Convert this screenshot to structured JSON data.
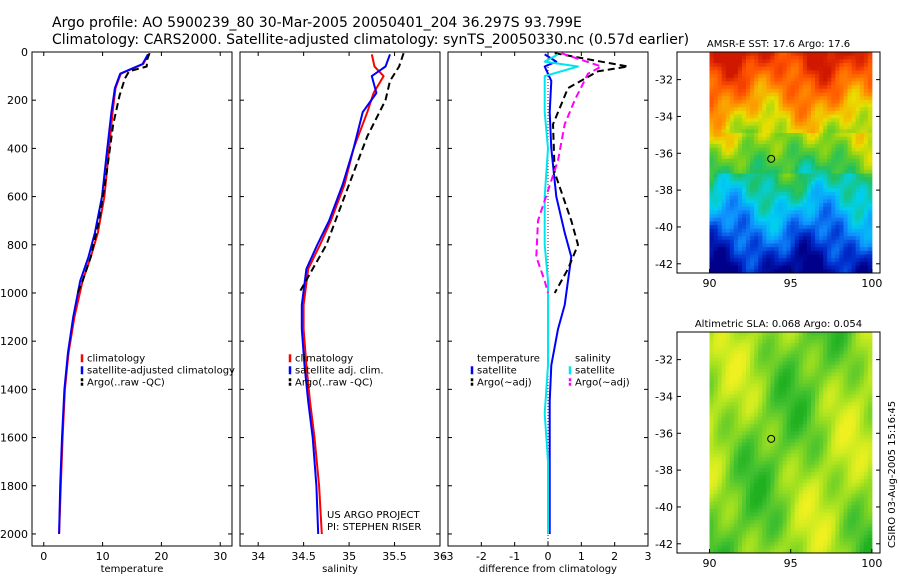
{
  "header": {
    "line1": "Argo profile: AO 5900239_80 30-Mar-2005 20050401_204 36.297S 93.799E",
    "line2": "Climatology: CARS2000. Satellite-adjusted climatology: synTS_20050330.nc (0.57d earlier)"
  },
  "credit": {
    "project": "US ARGO PROJECT",
    "pi": "PI: STEPHEN RISER",
    "stamp": "CSIRO 03-Aug-2005 15:16:45"
  },
  "colors": {
    "climatology": "#ff0000",
    "satellite": "#0000ff",
    "argo": "#000000",
    "sal_satellite": "#00e5ee",
    "sal_argo": "#ff00ff"
  },
  "chart_data": [
    {
      "type": "line",
      "xlabel": "temperature",
      "ylabel": "",
      "xlim": [
        -2,
        32
      ],
      "ylim": [
        2050,
        0
      ],
      "y_reversed": true,
      "xticks": [
        0,
        10,
        20,
        30
      ],
      "yticks": [
        0,
        200,
        400,
        600,
        800,
        1000,
        1200,
        1400,
        1600,
        1800,
        2000
      ],
      "legend": [
        "climatology",
        "satellite-adjusted climatology",
        "Argo(..raw -QC)"
      ],
      "legend_position": "lower-right",
      "series": [
        {
          "name": "climatology",
          "color": "#ff0000",
          "style": "solid",
          "x": [
            17.8,
            16.9,
            13.1,
            12.2,
            11.7,
            11.1,
            10.3,
            9.2,
            8.0,
            6.6,
            5.2,
            4.2,
            3.6,
            3.2,
            2.9,
            2.6
          ],
          "y": [
            10,
            50,
            90,
            150,
            250,
            400,
            600,
            750,
            850,
            950,
            1100,
            1250,
            1400,
            1600,
            1800,
            2000
          ]
        },
        {
          "name": "satellite-adjusted climatology",
          "color": "#0000ff",
          "style": "solid",
          "x": [
            17.7,
            16.8,
            13.0,
            12.1,
            11.5,
            10.8,
            9.9,
            8.7,
            7.6,
            6.2,
            5.0,
            4.1,
            3.5,
            3.1,
            2.8,
            2.6
          ],
          "y": [
            10,
            50,
            90,
            150,
            250,
            400,
            600,
            750,
            850,
            950,
            1100,
            1250,
            1400,
            1600,
            1800,
            2000
          ]
        },
        {
          "name": "Argo(..raw -QC)",
          "color": "#000000",
          "style": "dashed",
          "x": [
            18.0,
            17.6,
            17.5,
            14.5,
            13.8,
            12.9,
            11.8,
            10.7,
            9.4,
            8.0,
            6.6,
            5.6
          ],
          "y": [
            5,
            30,
            60,
            80,
            110,
            180,
            300,
            500,
            700,
            850,
            950,
            1010
          ]
        }
      ]
    },
    {
      "type": "line",
      "xlabel": "salinity",
      "ylabel": "",
      "xlim": [
        33.8,
        36.0
      ],
      "ylim": [
        2050,
        0
      ],
      "y_reversed": true,
      "xticks": [
        34,
        34.5,
        35,
        35.5,
        36
      ],
      "yticks": [
        0,
        200,
        400,
        600,
        800,
        1000,
        1200,
        1400,
        1600,
        1800,
        2000
      ],
      "legend": [
        "climatology",
        "satellite adj. clim.",
        "Argo(..raw -QC)"
      ],
      "legend_position": "lower-right",
      "series": [
        {
          "name": "climatology",
          "color": "#ff0000",
          "style": "solid",
          "x": [
            35.25,
            35.28,
            35.38,
            35.27,
            35.2,
            35.05,
            34.95,
            34.8,
            34.68,
            34.55,
            34.5,
            34.5,
            34.53,
            34.57,
            34.62,
            34.67,
            34.7
          ],
          "y": [
            10,
            60,
            100,
            170,
            250,
            400,
            550,
            700,
            800,
            900,
            1050,
            1150,
            1300,
            1450,
            1600,
            1800,
            2000
          ]
        },
        {
          "name": "satellite adj. clim.",
          "color": "#0000ff",
          "style": "solid",
          "x": [
            35.45,
            35.4,
            35.25,
            35.3,
            35.15,
            35.05,
            34.93,
            34.78,
            34.65,
            34.53,
            34.48,
            34.48,
            34.51,
            34.55,
            34.6,
            34.64,
            34.66
          ],
          "y": [
            10,
            60,
            100,
            170,
            250,
            400,
            550,
            700,
            800,
            900,
            1050,
            1150,
            1300,
            1450,
            1600,
            1800,
            2000
          ]
        },
        {
          "name": "Argo(..raw -QC)",
          "color": "#000000",
          "style": "dashed",
          "x": [
            35.6,
            35.55,
            35.45,
            35.4,
            35.2,
            35.05,
            34.9,
            34.75,
            34.6,
            34.45
          ],
          "y": [
            5,
            60,
            120,
            200,
            350,
            500,
            650,
            800,
            900,
            1000
          ]
        }
      ]
    },
    {
      "type": "line",
      "xlabel": "difference from climatology",
      "ylabel": "",
      "xlim": [
        -3,
        3
      ],
      "ylim": [
        2050,
        0
      ],
      "y_reversed": true,
      "xticks": [
        -3,
        -2,
        -1,
        0,
        1,
        2,
        3
      ],
      "yticks": [
        0,
        200,
        400,
        600,
        800,
        1000,
        1200,
        1400,
        1600,
        1800,
        2000
      ],
      "legend_groups": [
        {
          "heading": "temperature",
          "items": [
            "satellite",
            "Argo(~adj)"
          ]
        },
        {
          "heading": "salinity",
          "items": [
            "satellite",
            "Argo(~adj)"
          ]
        }
      ],
      "legend": [
        "temperature",
        "satellite",
        "Argo(~adj)",
        "salinity",
        "satellite",
        "Argo(~adj)"
      ],
      "legend_position": "lower-center",
      "series": [
        {
          "name": "temperature satellite",
          "color": "#0000ff",
          "style": "solid",
          "x": [
            -0.1,
            0.25,
            -0.1,
            0.1,
            0.05,
            0.1,
            0.25,
            0.5,
            0.7,
            0.6,
            0.5,
            0.3,
            0.1,
            0.05,
            0.05,
            0.05,
            0.05
          ],
          "y": [
            10,
            40,
            60,
            120,
            250,
            400,
            600,
            750,
            850,
            950,
            1050,
            1150,
            1300,
            1450,
            1600,
            1800,
            2000
          ]
        },
        {
          "name": "temperature Argo(~adj)",
          "color": "#000000",
          "style": "dashed",
          "x": [
            0.2,
            2.4,
            1.5,
            0.6,
            0.15,
            0.2,
            0.7,
            0.9,
            0.6,
            0.2
          ],
          "y": [
            5,
            60,
            80,
            150,
            300,
            500,
            700,
            800,
            900,
            1000
          ]
        },
        {
          "name": "salinity satellite",
          "color": "#00e5ee",
          "style": "solid",
          "x": [
            0.3,
            -0.1,
            0.9,
            -0.1,
            -0.1,
            0.0,
            -0.1,
            -0.1,
            0.0,
            0.0,
            0.0,
            -0.1,
            0.0,
            0.0,
            0.0
          ],
          "y": [
            10,
            40,
            60,
            100,
            250,
            400,
            600,
            800,
            950,
            1100,
            1300,
            1500,
            1700,
            1900,
            2000
          ]
        },
        {
          "name": "salinity Argo(~adj)",
          "color": "#ff00ff",
          "style": "dashed",
          "x": [
            0.4,
            1.6,
            1.2,
            0.8,
            0.5,
            0.3,
            -0.3,
            -0.35,
            -0.1,
            0.0
          ],
          "y": [
            5,
            60,
            90,
            200,
            300,
            450,
            700,
            850,
            950,
            1000
          ]
        }
      ]
    },
    {
      "type": "heatmap",
      "title": "AMSR-E SST: 17.6 Argo: 17.6",
      "xlim": [
        88,
        100.5
      ],
      "ylim": [
        -42.5,
        -30.5
      ],
      "xticks": [
        90,
        95,
        100
      ],
      "yticks": [
        -32,
        -34,
        -36,
        -38,
        -40,
        -42
      ],
      "data_region": {
        "lon": [
          90,
          100
        ],
        "lat": [
          -42.5,
          -30.5
        ]
      },
      "marker": {
        "lon": 93.8,
        "lat": -36.3
      },
      "colorscale": [
        "#00008b",
        "#0030d0",
        "#1090ff",
        "#00d0f0",
        "#20c060",
        "#70d020",
        "#e8e000",
        "#ff9000",
        "#ff5000",
        "#d01800"
      ]
    },
    {
      "type": "heatmap",
      "title": "Altimetric SLA: 0.068 Argo: 0.054",
      "xlim": [
        88,
        100.5
      ],
      "ylim": [
        -42.5,
        -30.5
      ],
      "xticks": [
        90,
        95,
        100
      ],
      "yticks": [
        -32,
        -34,
        -36,
        -38,
        -40,
        -42
      ],
      "data_region": {
        "lon": [
          90,
          100
        ],
        "lat": [
          -42.5,
          -30.5
        ]
      },
      "marker": {
        "lon": 93.8,
        "lat": -36.3
      },
      "colorscale": [
        "#20b020",
        "#40c030",
        "#70d028",
        "#a0e020",
        "#d0ec20",
        "#f0f020"
      ]
    }
  ]
}
